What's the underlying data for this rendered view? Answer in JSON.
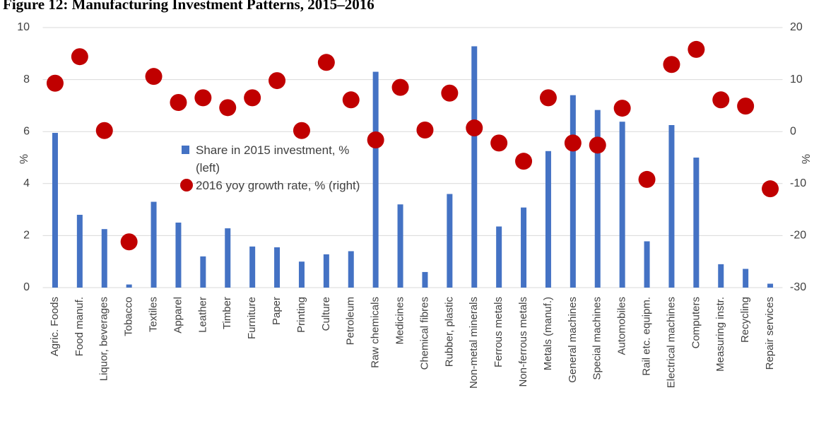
{
  "chart_data": {
    "type": "bar_scatter",
    "title": "Figure 12: Manufacturing Investment Patterns, 2015–2016",
    "ylabel": "%",
    "y2label": "%",
    "categories": [
      "Agric. Foods",
      "Food manuf.",
      "Liquor, beverages",
      "Tobacco",
      "Textiles",
      "Apparel",
      "Leather",
      "Timber",
      "Furniture",
      "Paper",
      "Printing",
      "Culture",
      "Petroleum",
      "Raw chemicals",
      "Medicines",
      "Chemical fibres",
      "Rubber, plastic",
      "Non-metal minerals",
      "Ferrous metals",
      "Non-ferrous metals",
      "Metals (manuf.)",
      "General machines",
      "Special machines",
      "Automobiles",
      "Rail etc. equipm.",
      "Electrical machines",
      "Computers",
      "Measuring instr.",
      "Recycling",
      "Repair services"
    ],
    "series": [
      {
        "name": "Share in 2015 investment, % (left)",
        "type": "bar",
        "color": "#4472c4",
        "axis": "y",
        "values": [
          5.95,
          2.8,
          2.25,
          0.12,
          3.3,
          2.5,
          1.2,
          2.28,
          1.58,
          1.55,
          1.0,
          1.28,
          1.4,
          8.3,
          3.2,
          0.6,
          3.6,
          9.28,
          2.35,
          3.08,
          5.25,
          7.4,
          6.83,
          6.38,
          1.78,
          6.25,
          5.0,
          0.9,
          0.72,
          0.15
        ]
      },
      {
        "name": "2016 yoy growth rate, % (right)",
        "type": "scatter",
        "color": "#c00000",
        "axis": "y2",
        "values": [
          9.3,
          14.4,
          0.2,
          -21.2,
          10.6,
          5.6,
          6.5,
          4.6,
          6.5,
          9.8,
          0.2,
          13.3,
          6.1,
          -1.6,
          8.5,
          0.3,
          7.4,
          0.7,
          -2.2,
          -5.7,
          6.5,
          -2.2,
          -2.6,
          4.5,
          -9.2,
          12.9,
          15.8,
          6.1,
          4.9,
          -11.0
        ]
      }
    ],
    "ylim": [
      0,
      10
    ],
    "yticks": [
      0,
      2,
      4,
      6,
      8,
      10
    ],
    "y2lim": [
      -30,
      20
    ],
    "y2ticks": [
      -30,
      -20,
      -10,
      0,
      10,
      20
    ],
    "grid": true
  }
}
